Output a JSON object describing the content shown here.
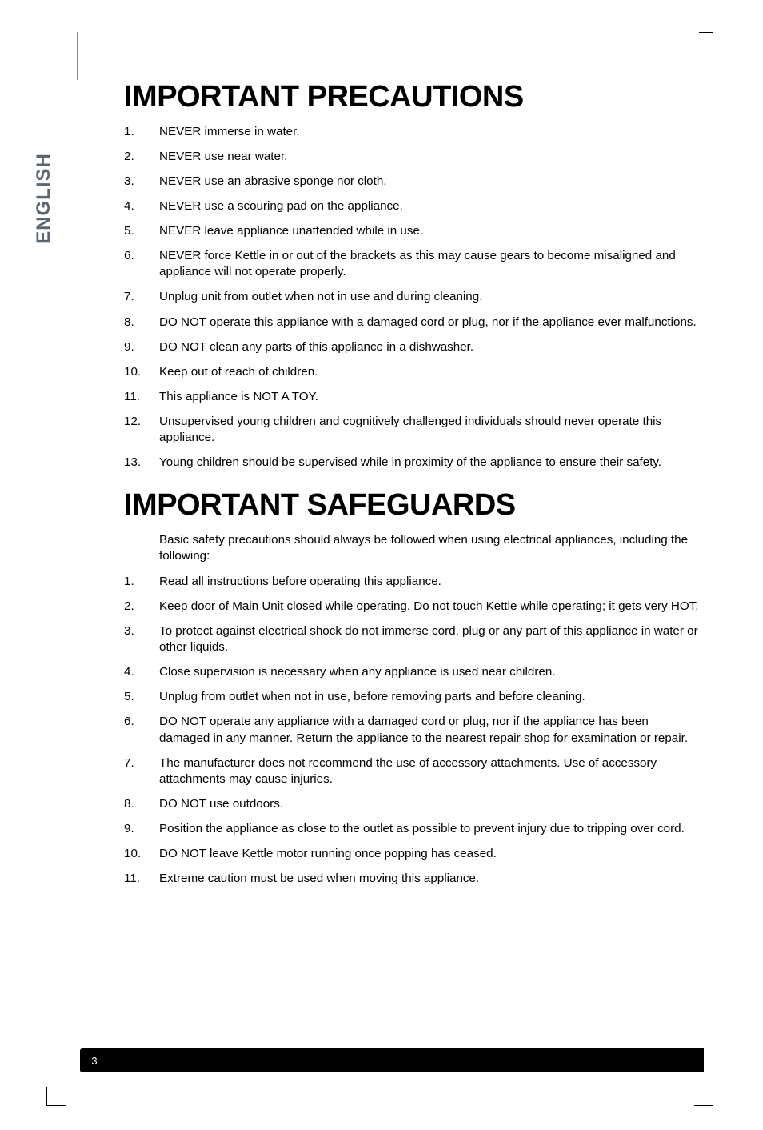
{
  "side_tab": "ENGLISH",
  "heading1": "IMPORTANT PRECAUTIONS",
  "precautions": [
    "NEVER immerse in water.",
    "NEVER use near water.",
    "NEVER use an abrasive sponge nor cloth.",
    "NEVER use a scouring pad on the appliance.",
    "NEVER leave appliance unattended while in use.",
    "NEVER force Kettle in or out of the brackets as this may cause gears to become misaligned and appliance will not operate properly.",
    "Unplug unit from outlet when not in use and during cleaning.",
    "DO NOT operate this appliance with a damaged cord or plug, nor if the appliance ever malfunctions.",
    "DO NOT clean any parts of this appliance in a dishwasher.",
    "Keep out of reach of children.",
    "This appliance is NOT A TOY.",
    "Unsupervised young children and cognitively challenged individuals should never operate this appliance.",
    "Young children should be supervised while in proximity of the appliance to ensure their safety."
  ],
  "heading2": "IMPORTANT SAFEGUARDS",
  "safeguards_intro": "Basic safety precautions should always be followed when using electrical appliances, including the following:",
  "safeguards": [
    "Read all instructions before operating this appliance.",
    "Keep door of Main Unit closed while operating. Do not touch Kettle while operating; it gets very HOT.",
    "To protect against electrical shock do not immerse cord, plug or any part of this appliance in water or other liquids.",
    "Close supervision is necessary when any appliance is used near children.",
    "Unplug from outlet when not in use, before removing parts and before cleaning.",
    "DO NOT operate any appliance with a damaged cord or plug, nor if the appliance has been damaged in any manner. Return the appliance to the nearest repair shop for examination or repair.",
    "The manufacturer does not recommend the use of accessory attachments. Use of accessory attachments may cause injuries.",
    "DO NOT use outdoors.",
    "Position the appliance as close to the outlet as possible to prevent injury due to tripping over cord.",
    "DO NOT leave Kettle motor running once popping has ceased.",
    "Extreme caution must be used when moving this appliance."
  ],
  "page_number": "3"
}
